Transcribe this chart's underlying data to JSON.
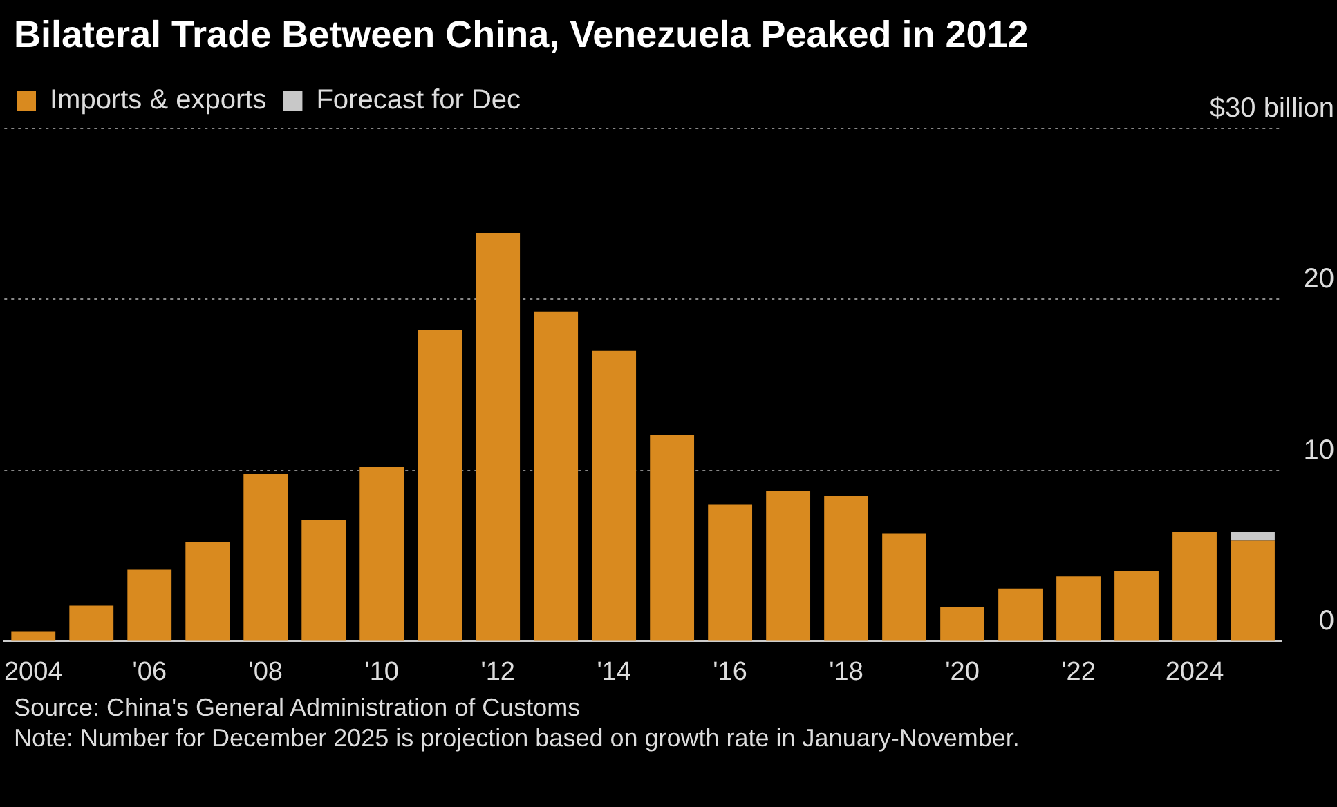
{
  "chart_data": {
    "type": "bar",
    "title": "Bilateral Trade Between China, Venezuela Peaked in 2012",
    "categories": [
      "2004",
      null,
      "'06",
      null,
      "'08",
      null,
      "'10",
      null,
      "'12",
      null,
      "'14",
      null,
      "'16",
      null,
      "'18",
      null,
      "'20",
      null,
      "'22",
      null,
      "2024",
      null
    ],
    "series": [
      {
        "name": "Imports & exports",
        "color": "#d98a1f",
        "values": [
          0.6,
          2.1,
          4.2,
          5.8,
          9.8,
          7.1,
          10.2,
          18.2,
          23.9,
          19.3,
          17.0,
          12.1,
          8.0,
          8.8,
          8.5,
          6.3,
          2.0,
          3.1,
          3.8,
          4.1,
          6.4,
          5.9
        ]
      },
      {
        "name": "Forecast for Dec",
        "color": "#c8c8c8",
        "values": [
          null,
          null,
          null,
          null,
          null,
          null,
          null,
          null,
          null,
          null,
          null,
          null,
          null,
          null,
          null,
          null,
          null,
          null,
          null,
          null,
          null,
          0.5
        ]
      }
    ],
    "stacked": true,
    "ylim": [
      0,
      30
    ],
    "yticks": [
      0,
      10,
      20,
      {
        "value": 30,
        "label": "$30 billion"
      }
    ],
    "grid": "y",
    "legend": "top left",
    "annotations": [
      "Source: China's General Administration of Customs",
      "Note: Number for December 2025 is projection based on growth rate in January-November."
    ]
  }
}
